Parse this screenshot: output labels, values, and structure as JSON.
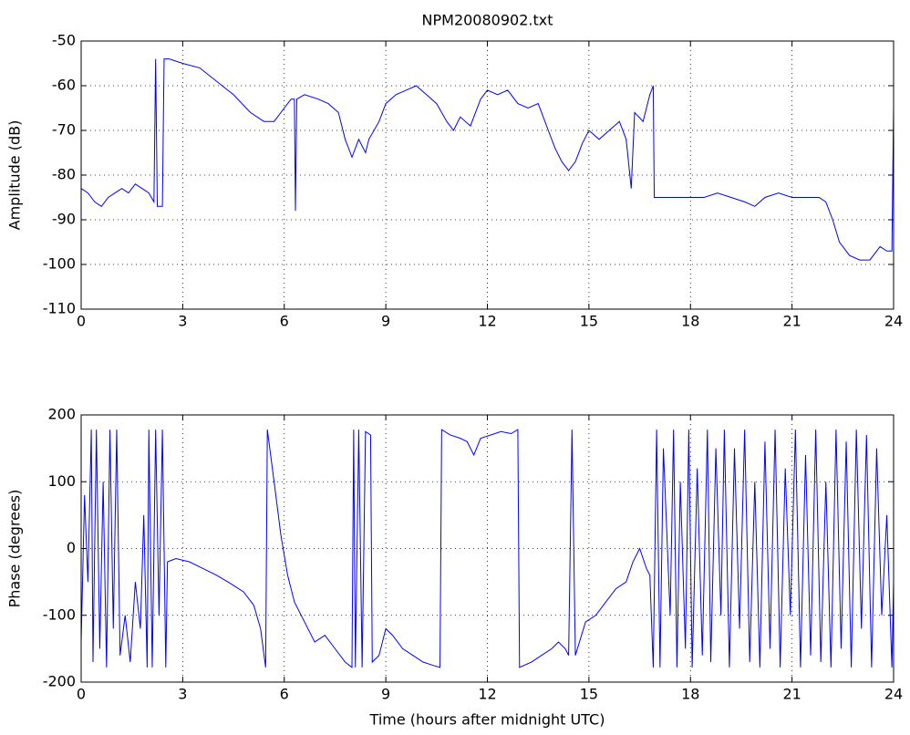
{
  "chart_data": [
    {
      "type": "line",
      "title": "NPM20080902.txt",
      "ylabel": "Amplitude (dB)",
      "color": "#0000ff",
      "grid": true,
      "x": [
        0,
        0.2,
        0.4,
        0.6,
        0.8,
        1,
        1.2,
        1.4,
        1.6,
        1.8,
        2,
        2.15,
        2.2,
        2.25,
        2.4,
        2.45,
        2.6,
        3,
        3.5,
        4,
        4.5,
        5,
        5.4,
        5.7,
        6,
        6.2,
        6.3,
        6.33,
        6.37,
        6.6,
        7,
        7.3,
        7.6,
        7.8,
        8,
        8.2,
        8.4,
        8.5,
        8.8,
        9,
        9.3,
        9.6,
        9.9,
        10.2,
        10.5,
        10.8,
        11,
        11.2,
        11.5,
        11.8,
        12,
        12.3,
        12.6,
        12.9,
        13.2,
        13.5,
        13.8,
        14,
        14.2,
        14.4,
        14.6,
        14.8,
        15,
        15.3,
        15.6,
        15.9,
        16.1,
        16.25,
        16.35,
        16.6,
        16.8,
        16.9,
        16.93,
        17.2,
        17.6,
        18,
        18.4,
        18.8,
        19.2,
        19.6,
        19.9,
        20.2,
        20.6,
        21,
        21.4,
        21.8,
        22,
        22.2,
        22.4,
        22.7,
        23,
        23.3,
        23.6,
        23.8,
        23.95,
        24
      ],
      "values": [
        -83,
        -84,
        -86,
        -87,
        -85,
        -84,
        -83,
        -84,
        -82,
        -83,
        -84,
        -86,
        -54,
        -87,
        -87,
        -54,
        -54,
        -55,
        -56,
        -59,
        -62,
        -66,
        -68,
        -68,
        -65,
        -63,
        -63,
        -88,
        -63,
        -62,
        -63,
        -64,
        -66,
        -72,
        -76,
        -72,
        -75,
        -72,
        -68,
        -64,
        -62,
        -61,
        -60,
        -62,
        -64,
        -68,
        -70,
        -67,
        -69,
        -63,
        -61,
        -62,
        -61,
        -64,
        -65,
        -64,
        -70,
        -74,
        -77,
        -79,
        -77,
        -73,
        -70,
        -72,
        -70,
        -68,
        -72,
        -83,
        -66,
        -68,
        -62,
        -60,
        -85,
        -85,
        -85,
        -85,
        -85,
        -84,
        -85,
        -86,
        -87,
        -85,
        -84,
        -85,
        -85,
        -85,
        -86,
        -90,
        -95,
        -98,
        -99,
        -99,
        -96,
        -97,
        -97,
        -65
      ],
      "xlim": [
        0,
        24
      ],
      "xticks": [
        0,
        3,
        6,
        9,
        12,
        15,
        18,
        21,
        24
      ],
      "ylim": [
        -110,
        -50
      ],
      "yticks": [
        -110,
        -100,
        -90,
        -80,
        -70,
        -60,
        -50
      ]
    },
    {
      "type": "line",
      "xlabel": "Time (hours after midnight UTC)",
      "ylabel": "Phase (degrees)",
      "color": "#0000ff",
      "grid": true,
      "x": [
        0,
        0.1,
        0.2,
        0.3,
        0.35,
        0.45,
        0.55,
        0.65,
        0.75,
        0.85,
        0.95,
        1.05,
        1.15,
        1.3,
        1.45,
        1.6,
        1.75,
        1.85,
        1.95,
        2,
        2.1,
        2.2,
        2.3,
        2.4,
        2.5,
        2.55,
        2.8,
        3.2,
        3.6,
        4,
        4.4,
        4.8,
        5.1,
        5.3,
        5.45,
        5.5,
        5.7,
        5.9,
        6.1,
        6.3,
        6.6,
        6.9,
        7.2,
        7.5,
        7.8,
        8,
        8.05,
        8.1,
        8.2,
        8.3,
        8.4,
        8.55,
        8.6,
        8.8,
        9,
        9.2,
        9.5,
        9.8,
        10.1,
        10.4,
        10.6,
        10.65,
        10.9,
        11.2,
        11.4,
        11.6,
        11.8,
        12.1,
        12.4,
        12.7,
        12.9,
        12.95,
        13.3,
        13.6,
        13.9,
        14.1,
        14.3,
        14.4,
        14.5,
        14.6,
        14.9,
        15.2,
        15.5,
        15.8,
        16.1,
        16.3,
        16.5,
        16.7,
        16.8,
        16.9,
        17,
        17.1,
        17.2,
        17.4,
        17.5,
        17.6,
        17.7,
        17.85,
        17.95,
        18.05,
        18.2,
        18.35,
        18.5,
        18.6,
        18.75,
        18.9,
        19,
        19.15,
        19.3,
        19.45,
        19.6,
        19.75,
        19.9,
        20.05,
        20.2,
        20.35,
        20.5,
        20.65,
        20.8,
        20.95,
        21.1,
        21.25,
        21.4,
        21.55,
        21.7,
        21.85,
        22,
        22.15,
        22.3,
        22.45,
        22.6,
        22.75,
        22.9,
        23.05,
        23.2,
        23.35,
        23.5,
        23.65,
        23.8,
        23.95,
        24
      ],
      "values": [
        -140,
        80,
        -50,
        178,
        -170,
        178,
        -150,
        100,
        -178,
        178,
        -120,
        178,
        -160,
        -100,
        -170,
        -50,
        -120,
        50,
        -178,
        178,
        -178,
        178,
        -100,
        178,
        -178,
        -20,
        -15,
        -20,
        -30,
        -40,
        -52,
        -65,
        -85,
        -120,
        -178,
        178,
        100,
        20,
        -40,
        -80,
        -110,
        -140,
        -130,
        -150,
        -170,
        -178,
        178,
        -178,
        178,
        -178,
        175,
        170,
        -170,
        -160,
        -120,
        -130,
        -150,
        -160,
        -170,
        -175,
        -178,
        178,
        170,
        165,
        160,
        140,
        165,
        170,
        175,
        172,
        178,
        -178,
        -170,
        -160,
        -150,
        -140,
        -150,
        -160,
        178,
        -160,
        -110,
        -100,
        -80,
        -60,
        -50,
        -20,
        0,
        -30,
        -40,
        -178,
        178,
        -178,
        150,
        -100,
        178,
        -178,
        100,
        -150,
        178,
        -178,
        120,
        -160,
        178,
        -170,
        150,
        -100,
        178,
        -178,
        150,
        -120,
        178,
        -170,
        100,
        -178,
        160,
        -150,
        178,
        -178,
        120,
        -100,
        178,
        -178,
        140,
        -160,
        178,
        -170,
        100,
        -178,
        178,
        -150,
        160,
        -178,
        178,
        -120,
        170,
        -178,
        150,
        -100,
        50,
        -178,
        -50
      ],
      "xlim": [
        0,
        24
      ],
      "xticks": [
        0,
        3,
        6,
        9,
        12,
        15,
        18,
        21,
        24
      ],
      "ylim": [
        -200,
        200
      ],
      "yticks": [
        -200,
        -100,
        0,
        100,
        200
      ]
    }
  ]
}
